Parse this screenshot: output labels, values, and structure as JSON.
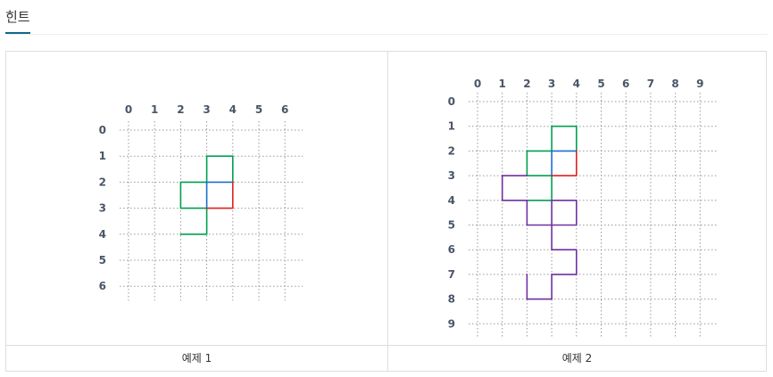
{
  "hint": {
    "title": "힌트"
  },
  "examples": [
    {
      "caption": "예제 1",
      "x_ticks": [
        "0",
        "1",
        "2",
        "3",
        "4",
        "5",
        "6"
      ],
      "y_ticks": [
        "0",
        "1",
        "2",
        "3",
        "4",
        "5",
        "6"
      ],
      "segments": [
        {
          "color": "#00a050",
          "points": [
            [
              3,
              2
            ],
            [
              3,
              1
            ],
            [
              4,
              1
            ],
            [
              4,
              2
            ]
          ]
        },
        {
          "color": "#00a050",
          "points": [
            [
              3,
              2
            ],
            [
              2,
              2
            ],
            [
              2,
              3
            ],
            [
              3,
              3
            ]
          ]
        },
        {
          "color": "#00a050",
          "points": [
            [
              3,
              3
            ],
            [
              3,
              4
            ],
            [
              2,
              4
            ]
          ]
        },
        {
          "color": "#1a6fd1",
          "points": [
            [
              3,
              2
            ],
            [
              4,
              2
            ]
          ]
        },
        {
          "color": "#1a6fd1",
          "points": [
            [
              3,
              2
            ],
            [
              3,
              3
            ]
          ]
        },
        {
          "color": "#e02020",
          "points": [
            [
              4,
              2
            ],
            [
              4,
              3
            ],
            [
              3,
              3
            ]
          ]
        }
      ]
    },
    {
      "caption": "예제 2",
      "x_ticks": [
        "0",
        "1",
        "2",
        "3",
        "4",
        "5",
        "6",
        "7",
        "8",
        "9"
      ],
      "y_ticks": [
        "0",
        "1",
        "2",
        "3",
        "4",
        "5",
        "6",
        "7",
        "8",
        "9"
      ],
      "segments": [
        {
          "color": "#00a050",
          "points": [
            [
              3,
              2
            ],
            [
              3,
              1
            ],
            [
              4,
              1
            ],
            [
              4,
              2
            ]
          ]
        },
        {
          "color": "#00a050",
          "points": [
            [
              3,
              2
            ],
            [
              2,
              2
            ],
            [
              2,
              3
            ],
            [
              3,
              3
            ]
          ]
        },
        {
          "color": "#00a050",
          "points": [
            [
              3,
              3
            ],
            [
              3,
              4
            ],
            [
              2,
              4
            ]
          ]
        },
        {
          "color": "#1a6fd1",
          "points": [
            [
              3,
              2
            ],
            [
              4,
              2
            ]
          ]
        },
        {
          "color": "#1a6fd1",
          "points": [
            [
              3,
              2
            ],
            [
              3,
              3
            ]
          ]
        },
        {
          "color": "#e02020",
          "points": [
            [
              4,
              2
            ],
            [
              4,
              3
            ],
            [
              3,
              3
            ]
          ]
        },
        {
          "color": "#7030a0",
          "points": [
            [
              2,
              3
            ],
            [
              1,
              3
            ],
            [
              1,
              4
            ],
            [
              2,
              4
            ],
            [
              2,
              5
            ],
            [
              3,
              5
            ],
            [
              3,
              4
            ]
          ]
        },
        {
          "color": "#7030a0",
          "points": [
            [
              3,
              4
            ],
            [
              4,
              4
            ],
            [
              4,
              5
            ],
            [
              3,
              5
            ],
            [
              3,
              6
            ],
            [
              4,
              6
            ],
            [
              4,
              7
            ],
            [
              3,
              7
            ],
            [
              3,
              8
            ],
            [
              2,
              8
            ],
            [
              2,
              7
            ]
          ]
        }
      ]
    }
  ]
}
